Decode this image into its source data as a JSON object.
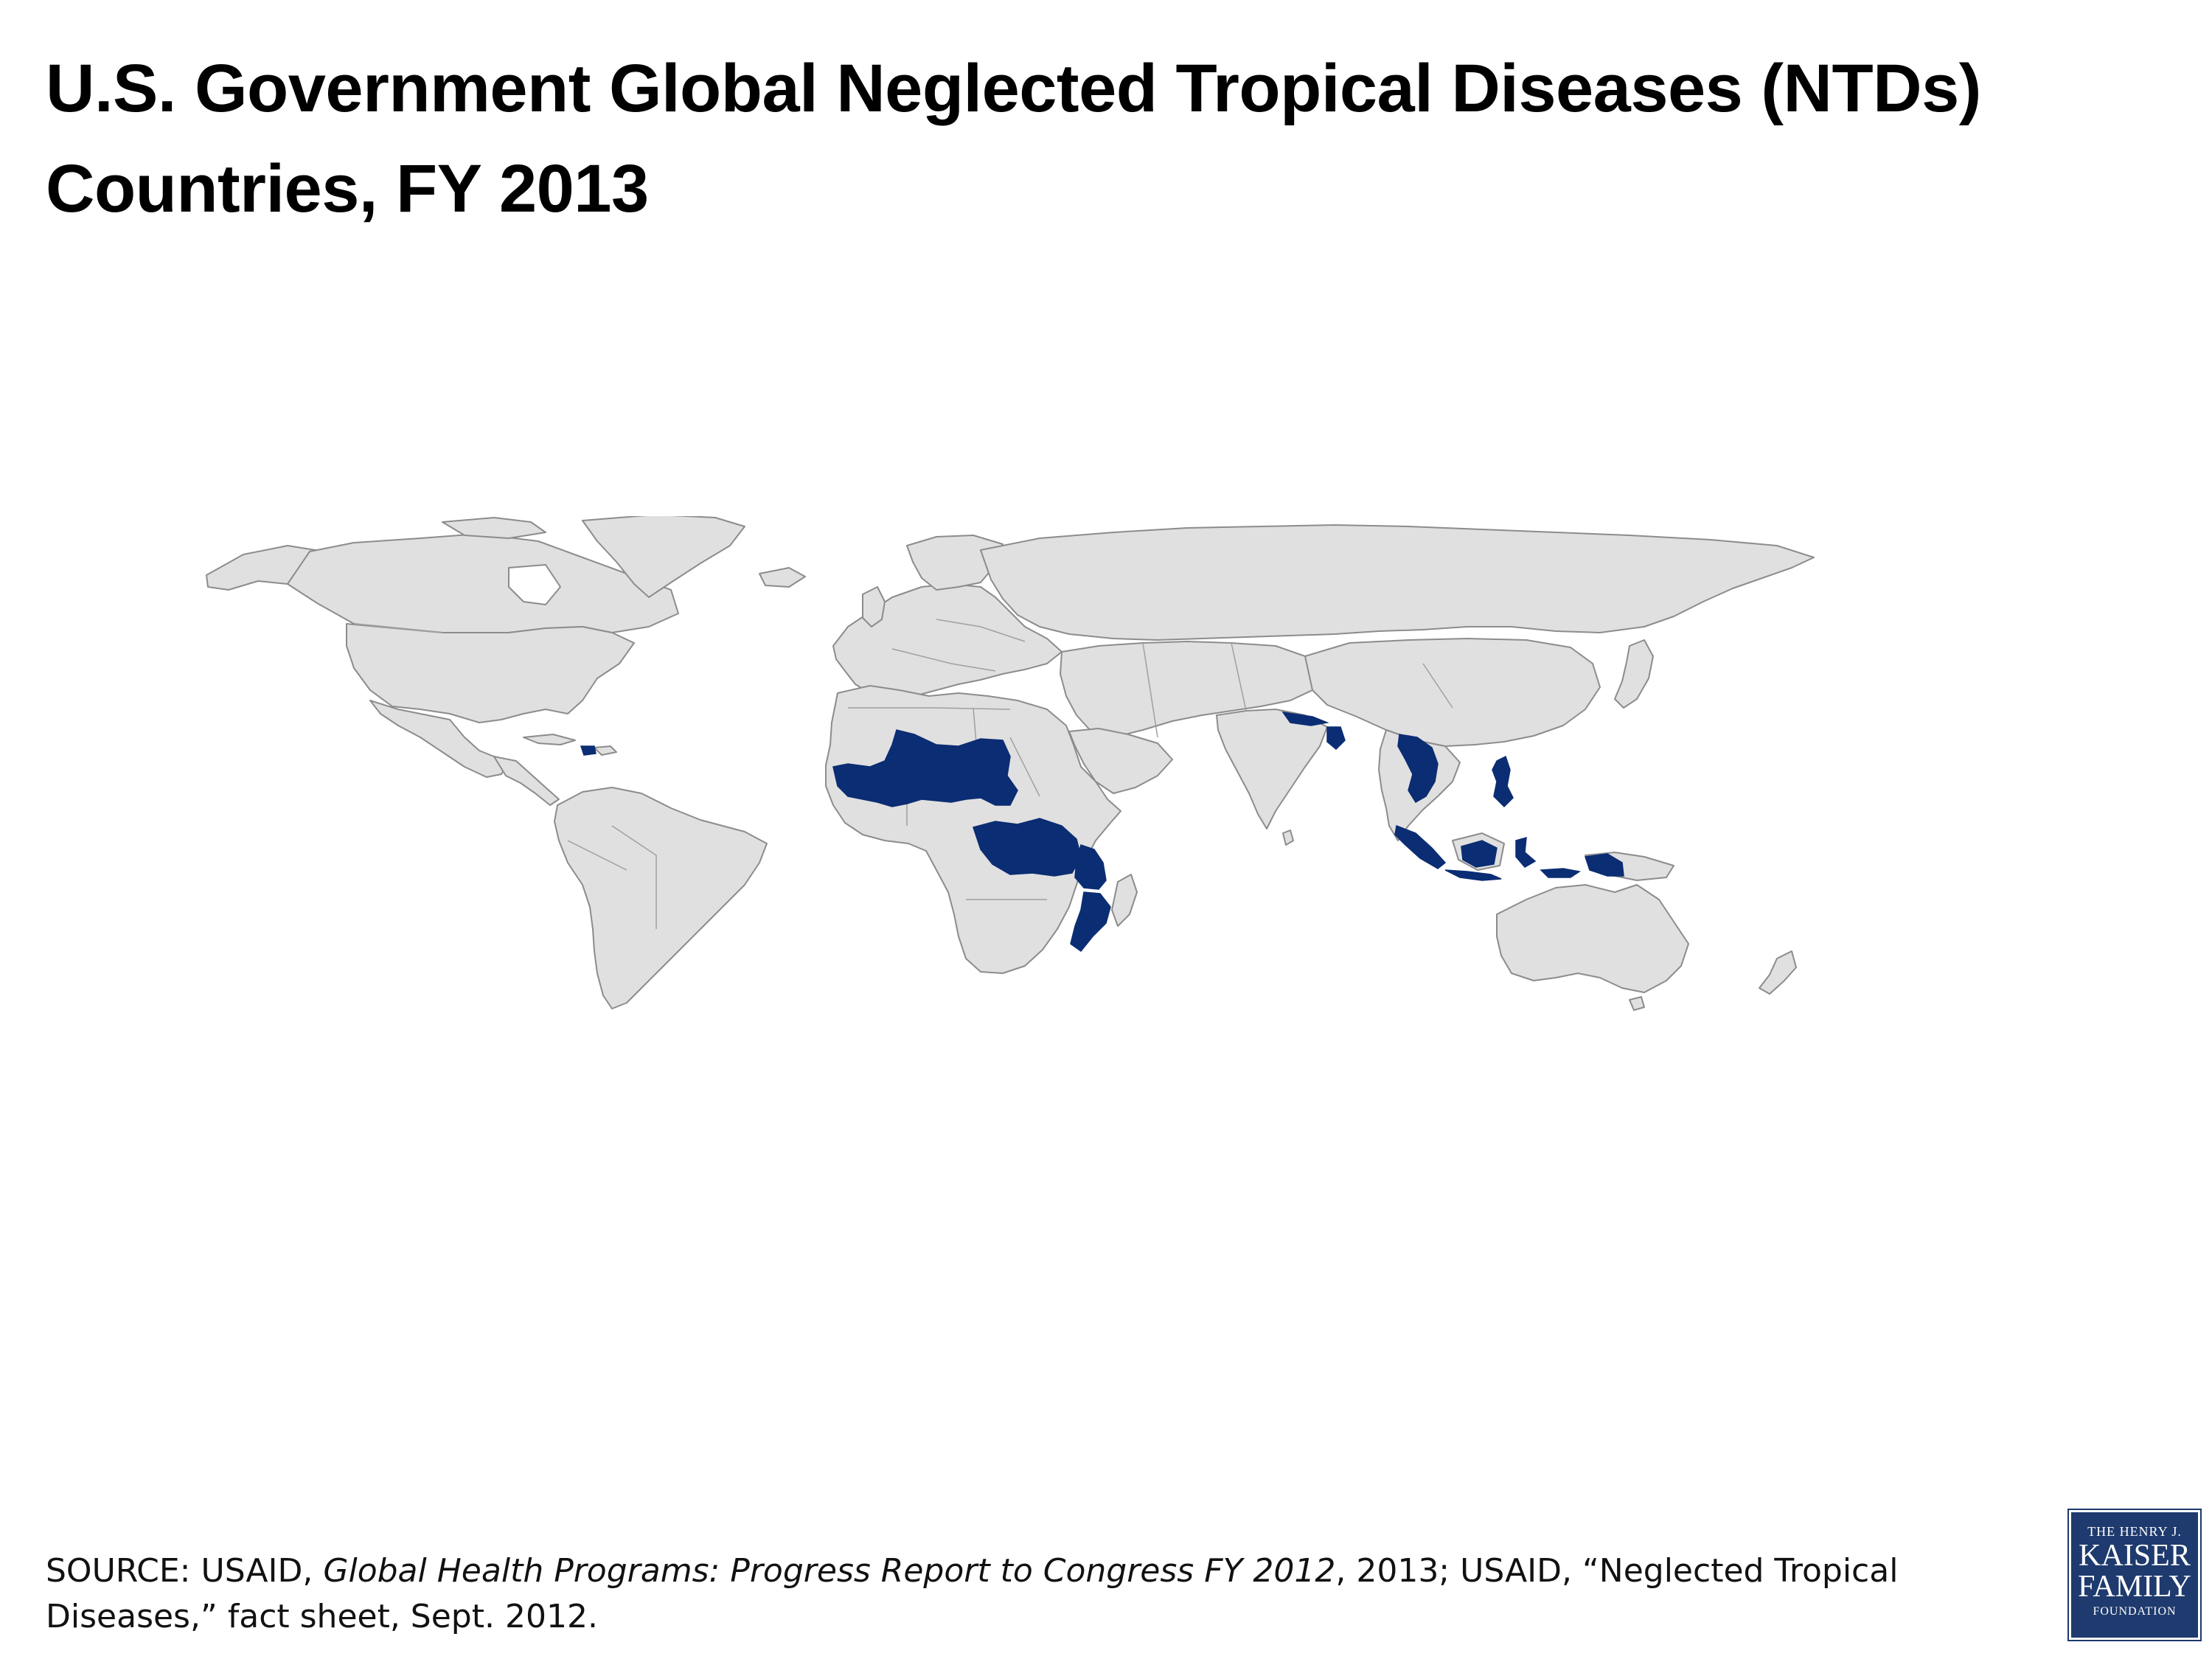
{
  "header": {
    "title_line1": "U.S. Government Global Neglected Tropical Diseases (NTDs)",
    "title_line2": "Countries, FY 2013"
  },
  "map": {
    "type": "choropleth-world",
    "colors": {
      "ocean": "#ffffff",
      "land": "#e0e0e0",
      "border": "#8c8c8c",
      "highlight": "#0b2d73"
    },
    "highlighted_regions": [
      "Haiti",
      "West Africa",
      "Central Africa",
      "East Africa",
      "Mozambique",
      "Nepal",
      "Bangladesh",
      "Southeast Asia",
      "Philippines",
      "Indonesia",
      "Papua New Guinea"
    ]
  },
  "source": {
    "prefix": "SOURCE: USAID, ",
    "italic_1": "Global Health Programs: Progress Report to Congress FY 2012",
    "middle": ", 2013; USAID, “Neglected Tropical Diseases,” fact sheet, Sept. 2012."
  },
  "logo": {
    "line1": "THE HENRY J.",
    "line2": "KAISER",
    "line3": "FAMILY",
    "line4": "FOUNDATION",
    "background": "#1e3a6e"
  }
}
